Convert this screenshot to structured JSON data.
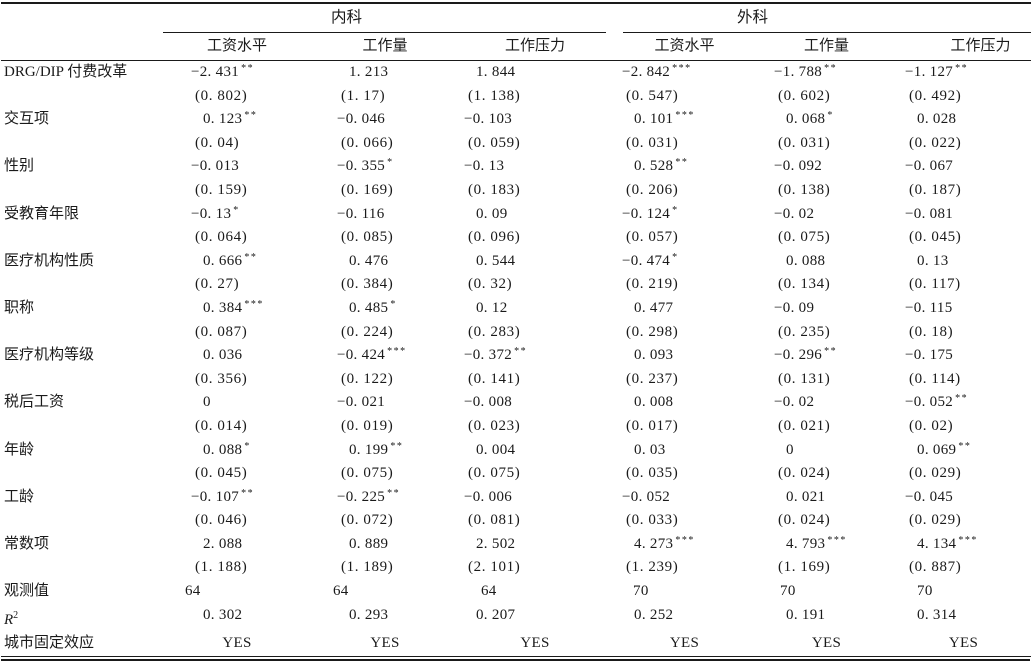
{
  "table": {
    "groups": [
      {
        "label": "内科"
      },
      {
        "label": "外科"
      }
    ],
    "sub_headers": [
      "工资水平",
      "工作量",
      "工作压力",
      "工资水平",
      "工作量",
      "工作压力"
    ],
    "rows": [
      {
        "label": "DRG/DIP 付费改革",
        "coefs": [
          "−2. 431**",
          "1. 213",
          "1. 844",
          "−2. 842***",
          "−1. 788**",
          "−1. 127**"
        ],
        "ses": [
          "(0. 802)",
          "(1. 17)",
          "(1. 138)",
          "(0. 547)",
          "(0. 602)",
          "(0. 492)"
        ]
      },
      {
        "label": "交互项",
        "coefs": [
          "0. 123**",
          "−0. 046",
          "−0. 103",
          "0. 101***",
          "0. 068*",
          "0. 028"
        ],
        "ses": [
          "(0. 04)",
          "(0. 066)",
          "(0. 059)",
          "(0. 031)",
          "(0. 031)",
          "(0. 022)"
        ]
      },
      {
        "label": "性别",
        "coefs": [
          "−0. 013",
          "−0. 355*",
          "−0. 13",
          "0. 528**",
          "−0. 092",
          "−0. 067"
        ],
        "ses": [
          "(0. 159)",
          "(0. 169)",
          "(0. 183)",
          "(0. 206)",
          "(0. 138)",
          "(0. 187)"
        ]
      },
      {
        "label": "受教育年限",
        "coefs": [
          "−0. 13*",
          "−0. 116",
          "0. 09",
          "−0. 124*",
          "−0. 02",
          "−0. 081"
        ],
        "ses": [
          "(0. 064)",
          "(0. 085)",
          "(0. 096)",
          "(0. 057)",
          "(0. 075)",
          "(0. 045)"
        ]
      },
      {
        "label": "医疗机构性质",
        "coefs": [
          "0. 666**",
          "0. 476",
          "0. 544",
          "−0. 474*",
          "0. 088",
          "0. 13"
        ],
        "ses": [
          "(0. 27)",
          "(0. 384)",
          "(0. 32)",
          "(0. 219)",
          "(0. 134)",
          "(0. 117)"
        ]
      },
      {
        "label": "职称",
        "coefs": [
          "0. 384***",
          "0. 485*",
          "0. 12",
          "0. 477",
          "−0. 09",
          "−0. 115"
        ],
        "ses": [
          "(0. 087)",
          "(0. 224)",
          "(0. 283)",
          "(0. 298)",
          "(0. 235)",
          "(0. 18)"
        ]
      },
      {
        "label": "医疗机构等级",
        "coefs": [
          "0. 036",
          "−0. 424***",
          "−0. 372**",
          "0. 093",
          "−0. 296**",
          "−0. 175"
        ],
        "ses": [
          "(0. 356)",
          "(0. 122)",
          "(0. 141)",
          "(0. 237)",
          "(0. 131)",
          "(0. 114)"
        ]
      },
      {
        "label": "税后工资",
        "coefs": [
          "0",
          "−0. 021",
          "−0. 008",
          "0. 008",
          "−0. 02",
          "−0. 052**"
        ],
        "ses": [
          "(0. 014)",
          "(0. 019)",
          "(0. 023)",
          "(0. 017)",
          "(0. 021)",
          "(0. 02)"
        ]
      },
      {
        "label": "年龄",
        "coefs": [
          "0. 088*",
          "0. 199**",
          "0. 004",
          "0. 03",
          "0",
          "0. 069**"
        ],
        "ses": [
          "(0. 045)",
          "(0. 075)",
          "(0. 075)",
          "(0. 035)",
          "(0. 024)",
          "(0. 029)"
        ]
      },
      {
        "label": "工龄",
        "coefs": [
          "−0. 107**",
          "−0. 225**",
          "−0. 006",
          "−0. 052",
          "0. 021",
          "−0. 045"
        ],
        "ses": [
          "(0. 046)",
          "(0. 072)",
          "(0. 081)",
          "(0. 033)",
          "(0. 024)",
          "(0. 029)"
        ]
      },
      {
        "label": "常数项",
        "coefs": [
          "2. 088",
          "0. 889",
          "2. 502",
          "4. 273***",
          "4. 793***",
          "4. 134***"
        ],
        "ses": [
          "(1. 188)",
          "(1. 189)",
          "(2. 101)",
          "(1. 239)",
          "(1. 169)",
          "(0. 887)"
        ]
      },
      {
        "label": "观测值",
        "align": "obs",
        "values": [
          "64",
          "64",
          "64",
          "70",
          "70",
          "70"
        ]
      },
      {
        "label": "R",
        "label_sup": "2",
        "math": true,
        "values": [
          "0. 302",
          "0. 293",
          "0. 207",
          "0. 252",
          "0. 191",
          "0. 314"
        ]
      },
      {
        "label": "城市固定效应",
        "align": "center",
        "values": [
          "YES",
          "YES",
          "YES",
          "YES",
          "YES",
          "YES"
        ]
      }
    ]
  }
}
